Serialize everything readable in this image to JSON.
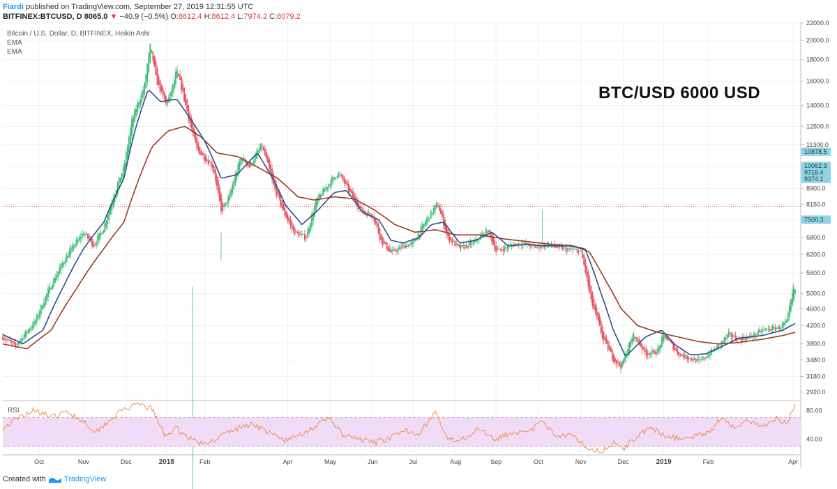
{
  "header": {
    "user": "Fiardi",
    "published_text": "published on TradingView.com, September 27, 2019 12:31:55 UTC",
    "symbol": "BITFINEX:BTCUSD, D",
    "last_price": "8065.0",
    "change": "−40.9 (−0.5%)",
    "o_label": "O:",
    "o_value": "8612.4",
    "h_label": "H:",
    "h_value": "8612.4",
    "l_label": "L:",
    "l_value": "7974.2",
    "c_label": "C:",
    "c_value": "8079.2"
  },
  "indicators": {
    "title": "Bitcoin / U.S. Dollar, D, BITFINEX, Heikin Ashi",
    "ema1": "EMA",
    "ema2": "EMA",
    "rsi": "RSI"
  },
  "annotation": "BTC/USD 6000 USD",
  "footer": {
    "created_with": "Created with",
    "brand": "TradingView"
  },
  "colors": {
    "up": "#3fbb78",
    "down": "#e5505f",
    "ema_fast": "#2b4f86",
    "ema_slow": "#9b3a22",
    "rsi_line": "#ec8f4a",
    "rsi_band": "#f1dcf7",
    "price_line": "#e05050",
    "tag": "#8fd3e2"
  },
  "chart_data": {
    "type": "candlestick",
    "symbol": "BTC/USD",
    "price_axis": {
      "scale": "log",
      "range": [
        2820,
        22000
      ],
      "ticks": [
        "22000.0",
        "20000.0",
        "18000.0",
        "16000.0",
        "14000.0",
        "12500.0",
        "11300.0",
        "10062.3",
        "8900.0",
        "8150.0",
        "7500.3",
        "6800.0",
        "6200.0",
        "5600.0",
        "5000.0",
        "4600.0",
        "4200.0",
        "3800.0",
        "3480.0",
        "3180.0",
        "2920.0"
      ],
      "tick_values": [
        22000,
        20000,
        18000,
        16000,
        14000,
        12500,
        11300,
        10062.3,
        8900,
        8150,
        7500.3,
        6800,
        6200,
        5600,
        5000,
        4600,
        4200,
        3800,
        3480,
        3180,
        2920
      ]
    },
    "price_tags": [
      {
        "label": "10878.5",
        "value": 10878.5
      },
      {
        "label": "10062.3",
        "value": 10062.3
      },
      {
        "label": "9716.4",
        "value": 9716.4
      },
      {
        "label": "9374.1",
        "value": 9374.1
      },
      {
        "label": "7500.3",
        "value": 7500.3
      }
    ],
    "current_price_line": 8065.0,
    "time_axis": {
      "labels": [
        "Oct",
        "Nov",
        "Dec",
        "2018",
        "Feb",
        "Apr",
        "May",
        "Jun",
        "Jul",
        "Aug",
        "Sep",
        "Oct",
        "Nov",
        "Dec",
        "2019",
        "Feb",
        "Apr"
      ],
      "bold": [
        "2018",
        "2019"
      ],
      "months_index": [
        0.9,
        2.0,
        3.05,
        4.05,
        5.0,
        7.05,
        8.1,
        9.15,
        10.15,
        11.2,
        12.2,
        13.25,
        14.3,
        15.35,
        16.35,
        17.45,
        19.55
      ]
    },
    "series": [
      {
        "name": "price",
        "anchors": [
          [
            0,
            3950
          ],
          [
            0.3,
            3750
          ],
          [
            0.8,
            4300
          ],
          [
            1.3,
            5500
          ],
          [
            1.6,
            6200
          ],
          [
            2.0,
            7000
          ],
          [
            2.25,
            6500
          ],
          [
            2.5,
            7200
          ],
          [
            3.0,
            10000
          ],
          [
            3.2,
            13000
          ],
          [
            3.5,
            15500
          ],
          [
            3.65,
            19500
          ],
          [
            3.8,
            16000
          ],
          [
            4.05,
            14000
          ],
          [
            4.2,
            15500
          ],
          [
            4.3,
            17000
          ],
          [
            4.6,
            13000
          ],
          [
            4.8,
            11000
          ],
          [
            5.2,
            10000
          ],
          [
            5.4,
            7800
          ],
          [
            5.6,
            8500
          ],
          [
            5.9,
            10600
          ],
          [
            6.1,
            10000
          ],
          [
            6.4,
            11300
          ],
          [
            6.7,
            9000
          ],
          [
            6.95,
            7800
          ],
          [
            7.2,
            7000
          ],
          [
            7.5,
            6800
          ],
          [
            7.75,
            8300
          ],
          [
            8.05,
            9100
          ],
          [
            8.3,
            9700
          ],
          [
            8.55,
            8800
          ],
          [
            8.9,
            7800
          ],
          [
            9.15,
            7700
          ],
          [
            9.35,
            6700
          ],
          [
            9.6,
            6250
          ],
          [
            9.85,
            6450
          ],
          [
            10.15,
            6600
          ],
          [
            10.45,
            7400
          ],
          [
            10.75,
            8200
          ],
          [
            11.0,
            6800
          ],
          [
            11.3,
            6400
          ],
          [
            11.65,
            6600
          ],
          [
            12.0,
            7100
          ],
          [
            12.2,
            6300
          ],
          [
            12.55,
            6500
          ],
          [
            12.8,
            6600
          ],
          [
            13.2,
            6450
          ],
          [
            13.5,
            6550
          ],
          [
            13.8,
            6400
          ],
          [
            14.1,
            6350
          ],
          [
            14.3,
            6300
          ],
          [
            14.55,
            4800
          ],
          [
            14.85,
            3900
          ],
          [
            15.1,
            3500
          ],
          [
            15.3,
            3350
          ],
          [
            15.45,
            3700
          ],
          [
            15.6,
            4000
          ],
          [
            15.9,
            3600
          ],
          [
            16.2,
            3650
          ],
          [
            16.35,
            4000
          ],
          [
            16.7,
            3600
          ],
          [
            17.05,
            3500
          ],
          [
            17.25,
            3450
          ],
          [
            17.45,
            3600
          ],
          [
            17.7,
            3750
          ],
          [
            17.95,
            4000
          ],
          [
            18.2,
            3900
          ],
          [
            18.5,
            3950
          ],
          [
            18.8,
            4100
          ],
          [
            19.2,
            4150
          ],
          [
            19.4,
            4300
          ],
          [
            19.55,
            5100
          ]
        ]
      },
      {
        "name": "EMA",
        "anchors": [
          [
            0,
            4000
          ],
          [
            0.5,
            3800
          ],
          [
            1.0,
            4100
          ],
          [
            1.5,
            5200
          ],
          [
            2.0,
            6400
          ],
          [
            2.5,
            7400
          ],
          [
            3.0,
            9400
          ],
          [
            3.3,
            12500
          ],
          [
            3.6,
            15300
          ],
          [
            3.9,
            14300
          ],
          [
            4.3,
            14500
          ],
          [
            4.6,
            13200
          ],
          [
            5.0,
            11500
          ],
          [
            5.4,
            9400
          ],
          [
            5.8,
            9600
          ],
          [
            6.3,
            10800
          ],
          [
            6.7,
            9300
          ],
          [
            7.0,
            8100
          ],
          [
            7.4,
            7300
          ],
          [
            7.8,
            7900
          ],
          [
            8.2,
            8700
          ],
          [
            8.5,
            8800
          ],
          [
            8.9,
            7800
          ],
          [
            9.3,
            7500
          ],
          [
            9.6,
            6700
          ],
          [
            9.9,
            6600
          ],
          [
            10.3,
            6800
          ],
          [
            10.6,
            7300
          ],
          [
            10.9,
            7400
          ],
          [
            11.3,
            6600
          ],
          [
            11.7,
            6700
          ],
          [
            12.1,
            7000
          ],
          [
            12.5,
            6500
          ],
          [
            12.9,
            6550
          ],
          [
            13.5,
            6500
          ],
          [
            14.0,
            6500
          ],
          [
            14.4,
            6400
          ],
          [
            14.8,
            5000
          ],
          [
            15.1,
            4100
          ],
          [
            15.4,
            3550
          ],
          [
            15.6,
            3700
          ],
          [
            15.9,
            3950
          ],
          [
            16.3,
            4100
          ],
          [
            16.6,
            3800
          ],
          [
            17.0,
            3580
          ],
          [
            17.4,
            3600
          ],
          [
            17.8,
            3750
          ],
          [
            18.2,
            3920
          ],
          [
            18.8,
            3980
          ],
          [
            19.3,
            4100
          ],
          [
            19.6,
            4250
          ]
        ]
      },
      {
        "name": "EMA",
        "anchors": [
          [
            0,
            3800
          ],
          [
            0.6,
            3700
          ],
          [
            1.2,
            4100
          ],
          [
            1.8,
            5100
          ],
          [
            2.5,
            6400
          ],
          [
            3.0,
            7400
          ],
          [
            3.3,
            9000
          ],
          [
            3.7,
            11200
          ],
          [
            4.1,
            12200
          ],
          [
            4.5,
            12500
          ],
          [
            4.9,
            11800
          ],
          [
            5.3,
            10800
          ],
          [
            5.8,
            10600
          ],
          [
            6.3,
            10000
          ],
          [
            6.8,
            9400
          ],
          [
            7.3,
            8500
          ],
          [
            7.7,
            8350
          ],
          [
            8.2,
            8500
          ],
          [
            8.7,
            8400
          ],
          [
            9.2,
            7900
          ],
          [
            9.7,
            7300
          ],
          [
            10.2,
            7000
          ],
          [
            10.7,
            7100
          ],
          [
            11.2,
            6900
          ],
          [
            11.8,
            6900
          ],
          [
            12.4,
            6750
          ],
          [
            13.0,
            6650
          ],
          [
            13.6,
            6550
          ],
          [
            14.1,
            6500
          ],
          [
            14.5,
            6300
          ],
          [
            14.9,
            5400
          ],
          [
            15.3,
            4600
          ],
          [
            15.7,
            4200
          ],
          [
            16.2,
            4050
          ],
          [
            16.7,
            3950
          ],
          [
            17.2,
            3850
          ],
          [
            17.7,
            3800
          ],
          [
            18.2,
            3830
          ],
          [
            18.8,
            3900
          ],
          [
            19.3,
            3980
          ],
          [
            19.6,
            4050
          ]
        ]
      },
      {
        "name": "RSI",
        "axis": {
          "range": [
            20,
            92
          ],
          "ticks": [
            "80.00",
            "40.00"
          ],
          "tick_values": [
            80,
            40
          ],
          "band": [
            30,
            70
          ]
        },
        "anchors": [
          [
            0,
            55
          ],
          [
            0.4,
            70
          ],
          [
            0.8,
            82
          ],
          [
            1.2,
            70
          ],
          [
            1.6,
            78
          ],
          [
            2.0,
            65
          ],
          [
            2.3,
            50
          ],
          [
            2.6,
            65
          ],
          [
            3.0,
            82
          ],
          [
            3.4,
            88
          ],
          [
            3.7,
            82
          ],
          [
            4.0,
            45
          ],
          [
            4.3,
            55
          ],
          [
            4.6,
            42
          ],
          [
            5.0,
            32
          ],
          [
            5.4,
            45
          ],
          [
            5.8,
            55
          ],
          [
            6.2,
            62
          ],
          [
            6.6,
            48
          ],
          [
            7.0,
            38
          ],
          [
            7.4,
            48
          ],
          [
            7.8,
            60
          ],
          [
            8.1,
            70
          ],
          [
            8.4,
            45
          ],
          [
            8.8,
            40
          ],
          [
            9.2,
            35
          ],
          [
            9.6,
            42
          ],
          [
            10.0,
            52
          ],
          [
            10.3,
            48
          ],
          [
            10.7,
            78
          ],
          [
            11.0,
            38
          ],
          [
            11.4,
            42
          ],
          [
            11.8,
            55
          ],
          [
            12.2,
            40
          ],
          [
            12.6,
            50
          ],
          [
            13.0,
            48
          ],
          [
            13.3,
            65
          ],
          [
            13.7,
            45
          ],
          [
            14.1,
            48
          ],
          [
            14.4,
            30
          ],
          [
            14.8,
            22
          ],
          [
            15.1,
            35
          ],
          [
            15.4,
            28
          ],
          [
            15.7,
            45
          ],
          [
            16.0,
            55
          ],
          [
            16.4,
            45
          ],
          [
            16.8,
            40
          ],
          [
            17.2,
            45
          ],
          [
            17.5,
            52
          ],
          [
            17.8,
            72
          ],
          [
            18.1,
            55
          ],
          [
            18.4,
            65
          ],
          [
            18.8,
            58
          ],
          [
            19.1,
            70
          ],
          [
            19.4,
            62
          ],
          [
            19.6,
            90
          ]
        ]
      }
    ]
  }
}
